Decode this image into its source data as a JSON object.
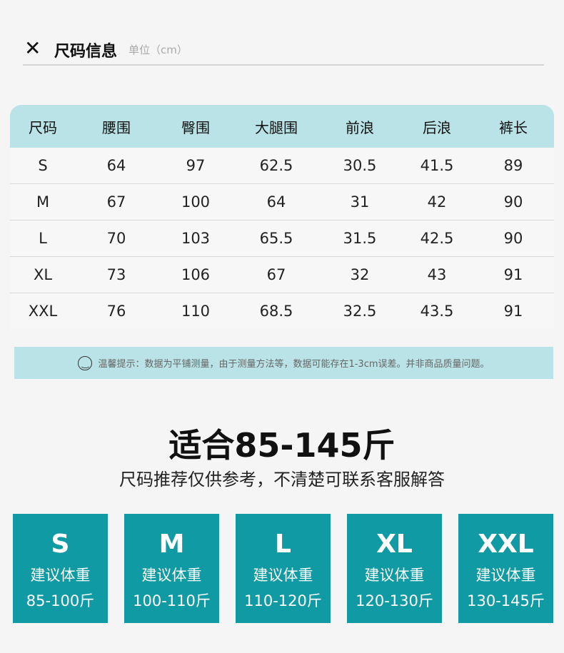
{
  "header": {
    "close_icon": "close-icon",
    "title": "尺码信息",
    "unit": "单位（cm）"
  },
  "table": {
    "columns": [
      "尺码",
      "腰围",
      "臀围",
      "大腿围",
      "前浪",
      "后浪",
      "裤长"
    ],
    "rows": [
      [
        "S",
        "64",
        "97",
        "62.5",
        "30.5",
        "41.5",
        "89"
      ],
      [
        "M",
        "67",
        "100",
        "64",
        "31",
        "42",
        "90"
      ],
      [
        "L",
        "70",
        "103",
        "65.5",
        "31.5",
        "42.5",
        "90"
      ],
      [
        "XL",
        "73",
        "106",
        "67",
        "32",
        "43",
        "91"
      ],
      [
        "XXL",
        "76",
        "110",
        "68.5",
        "32.5",
        "43.5",
        "91"
      ]
    ]
  },
  "note": {
    "icon": "smile-icon",
    "text": "温馨提示：数据为平铺测量，由于测量方法等，数据可能存在1-3cm误差。并非商品质量问题。"
  },
  "fit": {
    "title": "适合85-145斤",
    "subtitle": "尺码推荐仅供参考，不清楚可联系客服解答"
  },
  "tiles": [
    {
      "size": "S",
      "label": "建议体重",
      "range": "85-100斤"
    },
    {
      "size": "M",
      "label": "建议体重",
      "range": "100-110斤"
    },
    {
      "size": "L",
      "label": "建议体重",
      "range": "110-120斤"
    },
    {
      "size": "XL",
      "label": "建议体重",
      "range": "120-130斤"
    },
    {
      "size": "XXL",
      "label": "建议体重",
      "range": "130-145斤"
    }
  ],
  "colors": {
    "header_bg": "#b9e3e6",
    "tile_bg": "#109aa4"
  }
}
